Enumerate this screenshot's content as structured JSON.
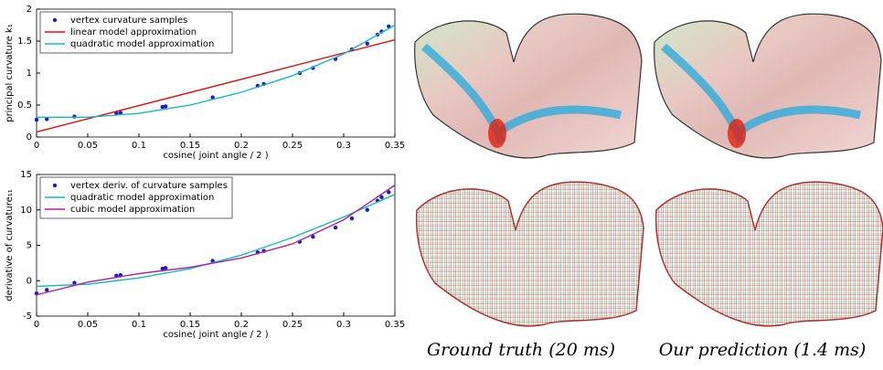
{
  "chart_data": [
    {
      "type": "line",
      "ylabel": "principal curvature k₁",
      "xlabel": "cosine( joint angle / 2 )",
      "xlim": [
        0,
        0.35
      ],
      "xticks": [
        0,
        0.05,
        0.1,
        0.15,
        0.2,
        0.25,
        0.3,
        0.35
      ],
      "ylim": [
        0,
        2
      ],
      "yticks": [
        0,
        0.5,
        1,
        1.5,
        2
      ],
      "legend": "upper-left",
      "series": [
        {
          "name": "vertex curvature samples",
          "color": "#1a1acc",
          "style": "markers",
          "x": [
            0,
            0.01,
            0.037,
            0.078,
            0.082,
            0.123,
            0.126,
            0.172,
            0.216,
            0.222,
            0.257,
            0.27,
            0.292,
            0.308,
            0.323,
            0.333,
            0.337,
            0.344
          ],
          "values": [
            0.27,
            0.28,
            0.32,
            0.37,
            0.38,
            0.47,
            0.48,
            0.62,
            0.8,
            0.83,
            1.0,
            1.08,
            1.22,
            1.37,
            1.46,
            1.6,
            1.65,
            1.73
          ]
        },
        {
          "name": "linear model approximation",
          "color": "#dd1111",
          "style": "line",
          "x": [
            0,
            0.35
          ],
          "values": [
            0.08,
            1.52
          ]
        },
        {
          "name": "quadratic model approximation",
          "color": "#11bbbb",
          "style": "line",
          "x": [
            0,
            0.05,
            0.1,
            0.15,
            0.2,
            0.25,
            0.3,
            0.35
          ],
          "values": [
            0.31,
            0.31,
            0.37,
            0.5,
            0.7,
            0.96,
            1.3,
            1.75
          ]
        }
      ]
    },
    {
      "type": "line",
      "ylabel": "derivative of curvature₁₁",
      "xlabel": "cosine( joint angle / 2 )",
      "xlim": [
        0,
        0.35
      ],
      "xticks": [
        0,
        0.05,
        0.1,
        0.15,
        0.2,
        0.25,
        0.3,
        0.35
      ],
      "ylim": [
        -5,
        15
      ],
      "yticks": [
        -5,
        0,
        5,
        10,
        15
      ],
      "legend": "upper-left",
      "series": [
        {
          "name": "vertex deriv. of curvature samples",
          "color": "#1a1acc",
          "style": "markers",
          "x": [
            0,
            0.01,
            0.037,
            0.078,
            0.082,
            0.123,
            0.126,
            0.172,
            0.216,
            0.222,
            0.257,
            0.27,
            0.292,
            0.308,
            0.323,
            0.333,
            0.337,
            0.344
          ],
          "values": [
            -1.8,
            -1.3,
            -0.3,
            0.7,
            0.8,
            1.7,
            1.8,
            2.8,
            4,
            4.2,
            5.5,
            6.2,
            7.5,
            8.8,
            10,
            11.3,
            11.8,
            12.5
          ]
        },
        {
          "name": "quadratic model approximation",
          "color": "#11bbbb",
          "style": "line",
          "x": [
            0,
            0.05,
            0.1,
            0.15,
            0.2,
            0.25,
            0.3,
            0.35
          ],
          "values": [
            -0.8,
            -0.5,
            0.4,
            1.7,
            3.6,
            6.1,
            9.0,
            12.2
          ]
        },
        {
          "name": "cubic model approximation",
          "color": "#aa22aa",
          "style": "line",
          "x": [
            0,
            0.05,
            0.1,
            0.15,
            0.2,
            0.25,
            0.3,
            0.35
          ],
          "values": [
            -2,
            -0.2,
            1,
            1.9,
            3.2,
            5.2,
            8.6,
            13.5
          ]
        }
      ]
    }
  ],
  "captions": [
    "Ground truth (20 ms)",
    "Our prediction (1.4 ms)"
  ]
}
